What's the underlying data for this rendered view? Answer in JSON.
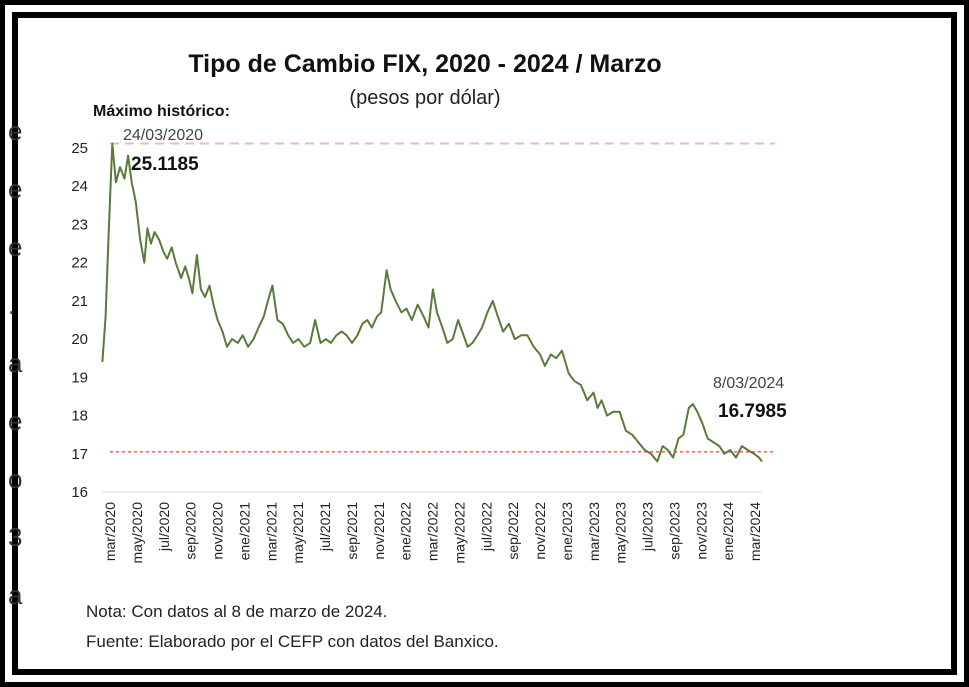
{
  "chart_data": {
    "type": "line",
    "title": "Tipo de Cambio FIX, 2020 - 2024 / Marzo",
    "subtitle": "(pesos por dólar)",
    "ylim": [
      16,
      25
    ],
    "y_ticks": [
      "16",
      "17",
      "18",
      "19",
      "20",
      "21",
      "22",
      "23",
      "24",
      "25"
    ],
    "x_tick_labels": [
      "mar/2020",
      "may/2020",
      "jul/2020",
      "sep/2020",
      "nov/2020",
      "ene/2021",
      "mar/2021",
      "may/2021",
      "jul/2021",
      "sep/2021",
      "nov/2021",
      "ene/2022",
      "mar/2022",
      "may/2022",
      "jul/2022",
      "sep/2022",
      "nov/2022",
      "ene/2023",
      "mar/2023",
      "may/2023",
      "jul/2023",
      "sep/2023",
      "nov/2023",
      "ene/2024",
      "mar/2024"
    ],
    "grid": false,
    "series": [
      {
        "color": "#5a7a3a",
        "x": [
          "2020-03-02",
          "2020-03-09",
          "2020-03-16",
          "2020-03-24",
          "2020-04-01",
          "2020-04-10",
          "2020-04-20",
          "2020-04-28",
          "2020-05-06",
          "2020-05-15",
          "2020-05-25",
          "2020-06-03",
          "2020-06-10",
          "2020-06-18",
          "2020-06-26",
          "2020-07-06",
          "2020-07-15",
          "2020-07-24",
          "2020-08-03",
          "2020-08-12",
          "2020-08-24",
          "2020-09-02",
          "2020-09-10",
          "2020-09-18",
          "2020-09-28",
          "2020-10-07",
          "2020-10-16",
          "2020-10-26",
          "2020-11-04",
          "2020-11-13",
          "2020-11-24",
          "2020-12-04",
          "2020-12-15",
          "2020-12-28",
          "2021-01-08",
          "2021-01-20",
          "2021-02-01",
          "2021-02-12",
          "2021-02-24",
          "2021-03-05",
          "2021-03-15",
          "2021-03-26",
          "2021-04-07",
          "2021-04-19",
          "2021-04-30",
          "2021-05-12",
          "2021-05-25",
          "2021-06-07",
          "2021-06-18",
          "2021-06-30",
          "2021-07-12",
          "2021-07-23",
          "2021-08-04",
          "2021-08-16",
          "2021-08-27",
          "2021-09-08",
          "2021-09-20",
          "2021-10-01",
          "2021-10-12",
          "2021-10-22",
          "2021-11-03",
          "2021-11-12",
          "2021-11-24",
          "2021-12-03",
          "2021-12-14",
          "2021-12-27",
          "2022-01-07",
          "2022-01-19",
          "2022-02-01",
          "2022-02-14",
          "2022-02-25",
          "2022-03-07",
          "2022-03-16",
          "2022-03-28",
          "2022-04-08",
          "2022-04-20",
          "2022-05-02",
          "2022-05-11",
          "2022-05-23",
          "2022-06-03",
          "2022-06-14",
          "2022-06-24",
          "2022-07-06",
          "2022-07-18",
          "2022-07-29",
          "2022-08-10",
          "2022-08-23",
          "2022-09-05",
          "2022-09-19",
          "2022-10-03",
          "2022-10-17",
          "2022-10-31",
          "2022-11-11",
          "2022-11-24",
          "2022-12-06",
          "2022-12-19",
          "2023-01-03",
          "2023-01-16",
          "2023-01-30",
          "2023-02-13",
          "2023-02-27",
          "2023-03-08",
          "2023-03-17",
          "2023-03-29",
          "2023-04-12",
          "2023-04-26",
          "2023-05-10",
          "2023-05-24",
          "2023-06-07",
          "2023-06-21",
          "2023-07-05",
          "2023-07-19",
          "2023-07-31",
          "2023-08-11",
          "2023-08-23",
          "2023-09-04",
          "2023-09-15",
          "2023-09-27",
          "2023-10-06",
          "2023-10-16",
          "2023-10-27",
          "2023-11-08",
          "2023-11-21",
          "2023-12-04",
          "2023-12-15",
          "2023-12-28",
          "2024-01-10",
          "2024-01-23",
          "2024-02-05",
          "2024-02-19",
          "2024-03-01",
          "2024-03-08"
        ],
        "y": [
          19.4,
          20.6,
          22.8,
          25.1185,
          24.1,
          24.5,
          24.2,
          24.8,
          24.1,
          23.6,
          22.6,
          22.0,
          22.9,
          22.5,
          22.8,
          22.6,
          22.3,
          22.1,
          22.4,
          22.0,
          21.6,
          21.9,
          21.6,
          21.2,
          22.2,
          21.3,
          21.1,
          21.4,
          20.9,
          20.5,
          20.2,
          19.8,
          20.0,
          19.9,
          20.1,
          19.8,
          20.0,
          20.3,
          20.6,
          21.0,
          21.4,
          20.5,
          20.4,
          20.1,
          19.9,
          20.0,
          19.8,
          19.9,
          20.5,
          19.9,
          20.0,
          19.9,
          20.1,
          20.2,
          20.1,
          19.9,
          20.1,
          20.4,
          20.5,
          20.3,
          20.6,
          20.7,
          21.8,
          21.3,
          21.0,
          20.7,
          20.8,
          20.5,
          20.9,
          20.6,
          20.3,
          21.3,
          20.7,
          20.3,
          19.9,
          20.0,
          20.5,
          20.2,
          19.8,
          19.9,
          20.1,
          20.3,
          20.7,
          21.0,
          20.6,
          20.2,
          20.4,
          20.0,
          20.1,
          20.1,
          19.8,
          19.6,
          19.3,
          19.6,
          19.5,
          19.7,
          19.1,
          18.9,
          18.8,
          18.4,
          18.6,
          18.2,
          18.4,
          18.0,
          18.1,
          18.1,
          17.6,
          17.5,
          17.3,
          17.1,
          17.0,
          16.8,
          17.2,
          17.1,
          16.9,
          17.4,
          17.5,
          18.2,
          18.3,
          18.1,
          17.8,
          17.4,
          17.3,
          17.2,
          17.0,
          17.1,
          16.9,
          17.2,
          17.1,
          17.0,
          16.9,
          16.7985
        ]
      }
    ],
    "reference_lines": [
      {
        "y": 25.1185,
        "color": "#f4b8b8",
        "style": "dashed"
      },
      {
        "y": 17.05,
        "color": "#e04040",
        "style": "dotted"
      }
    ],
    "annotations": {
      "max_title": "Máximo histórico:",
      "max_date": "24/03/2020",
      "max_value": "25.1185",
      "last_date": "8/03/2024",
      "last_value": "16.7985"
    },
    "notes": {
      "nota": "Nota: Con datos al 8 de marzo de 2024.",
      "fuente": "Fuente: Elaborado por el CEFP con datos del Banxico."
    }
  },
  "side_glyphs": [
    "e",
    "e",
    "e",
    ".",
    "a",
    "e",
    "o",
    "3",
    "a"
  ]
}
